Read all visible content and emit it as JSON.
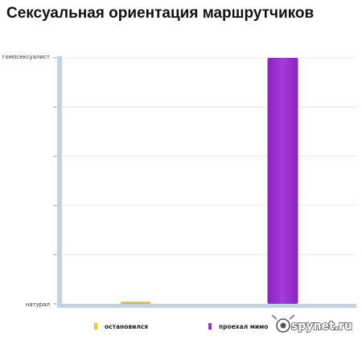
{
  "chart_data": {
    "type": "bar",
    "title": "Сексуальная ориентация маршрутчиков",
    "y_ticks": [
      "натурал",
      "гомосексуалист"
    ],
    "ylim": [
      0,
      1
    ],
    "grid": true,
    "legend_position": "bottom",
    "series": [
      {
        "name": "остановился",
        "color": "#e8c91a",
        "value": 0.01
      },
      {
        "name": "проехал мимо",
        "color": "#9b30d0",
        "value": 1.0
      }
    ]
  },
  "watermark": {
    "text": "spynet.ru"
  }
}
